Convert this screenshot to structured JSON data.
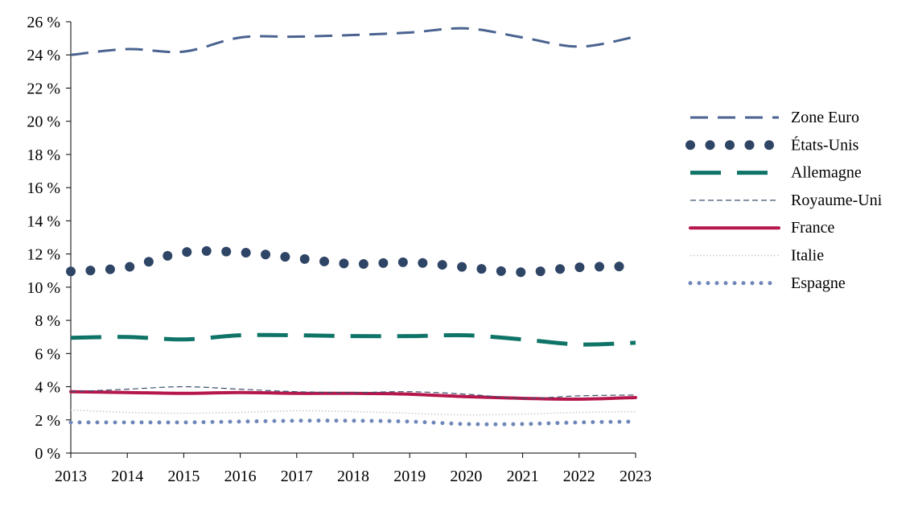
{
  "chart_data": {
    "type": "line",
    "x": [
      2013,
      2014,
      2015,
      2016,
      2017,
      2018,
      2019,
      2020,
      2021,
      2022,
      2023
    ],
    "ylim": [
      0,
      26
    ],
    "y_ticks": [
      "0 %",
      "2 %",
      "4 %",
      "6 %",
      "8 %",
      "10 %",
      "12 %",
      "14 %",
      "16 %",
      "18 %",
      "20 %",
      "22 %",
      "24 %",
      "26 %"
    ],
    "x_ticks": [
      "2013",
      "2014",
      "2015",
      "2016",
      "2017",
      "2018",
      "2019",
      "2020",
      "2021",
      "2022",
      "2023"
    ],
    "legend_position": "right",
    "series": [
      {
        "name": "Zone Euro",
        "color": "#4a6390",
        "style": "dashed",
        "values": [
          24.0,
          24.35,
          24.2,
          25.05,
          25.1,
          25.2,
          25.35,
          25.6,
          25.05,
          24.5,
          25.1
        ]
      },
      {
        "name": "États-Unis",
        "color": "#2f4566",
        "style": "dots",
        "values": [
          10.95,
          11.2,
          12.1,
          12.1,
          11.75,
          11.4,
          11.5,
          11.2,
          10.9,
          11.2,
          11.25
        ]
      },
      {
        "name": "Allemagne",
        "color": "#0e7467",
        "style": "thick-dashed",
        "values": [
          6.95,
          7.0,
          6.85,
          7.1,
          7.1,
          7.05,
          7.05,
          7.1,
          6.85,
          6.55,
          6.65
        ]
      },
      {
        "name": "Royaume-Uni",
        "color": "#3d4f6e",
        "style": "thin-dashed",
        "values": [
          3.7,
          3.85,
          4.0,
          3.85,
          3.7,
          3.65,
          3.7,
          3.55,
          3.3,
          3.45,
          3.5
        ]
      },
      {
        "name": "France",
        "color": "#b5174c",
        "style": "solid",
        "values": [
          3.7,
          3.65,
          3.6,
          3.65,
          3.6,
          3.6,
          3.55,
          3.4,
          3.3,
          3.25,
          3.35
        ]
      },
      {
        "name": "Italie",
        "color": "#c8c8c8",
        "style": "dotted-thin",
        "values": [
          2.6,
          2.45,
          2.4,
          2.45,
          2.55,
          2.5,
          2.4,
          2.3,
          2.35,
          2.45,
          2.5
        ]
      },
      {
        "name": "Espagne",
        "color": "#6f87b8",
        "style": "small-dots",
        "values": [
          1.85,
          1.85,
          1.85,
          1.9,
          1.95,
          1.95,
          1.9,
          1.75,
          1.75,
          1.85,
          1.9
        ]
      }
    ]
  }
}
